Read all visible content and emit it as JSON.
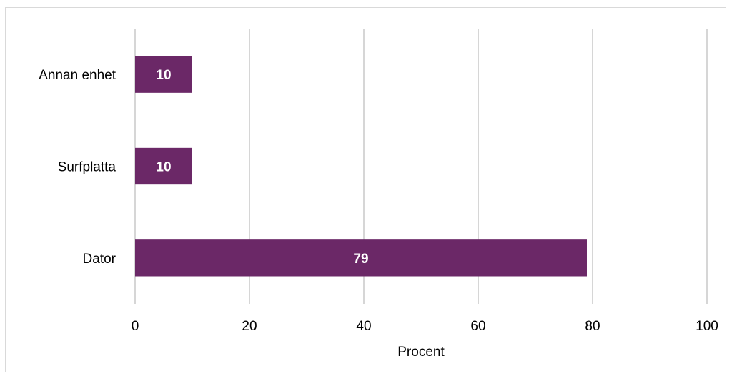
{
  "chart_data": {
    "type": "bar",
    "orientation": "horizontal",
    "categories": [
      "Annan enhet",
      "Surfplatta",
      "Dator"
    ],
    "values": [
      10,
      10,
      79
    ],
    "data_labels": [
      "10",
      "10",
      "79"
    ],
    "xlabel": "Procent",
    "ylabel": "",
    "xlim": [
      0,
      100
    ],
    "xticks": [
      0,
      20,
      40,
      60,
      80,
      100
    ],
    "xtick_labels": [
      "0",
      "20",
      "40",
      "60",
      "80",
      "100"
    ],
    "grid": "vertical",
    "legend": "none",
    "bar_color": "#6b2867",
    "gridline_color": "#bfbfbf"
  }
}
